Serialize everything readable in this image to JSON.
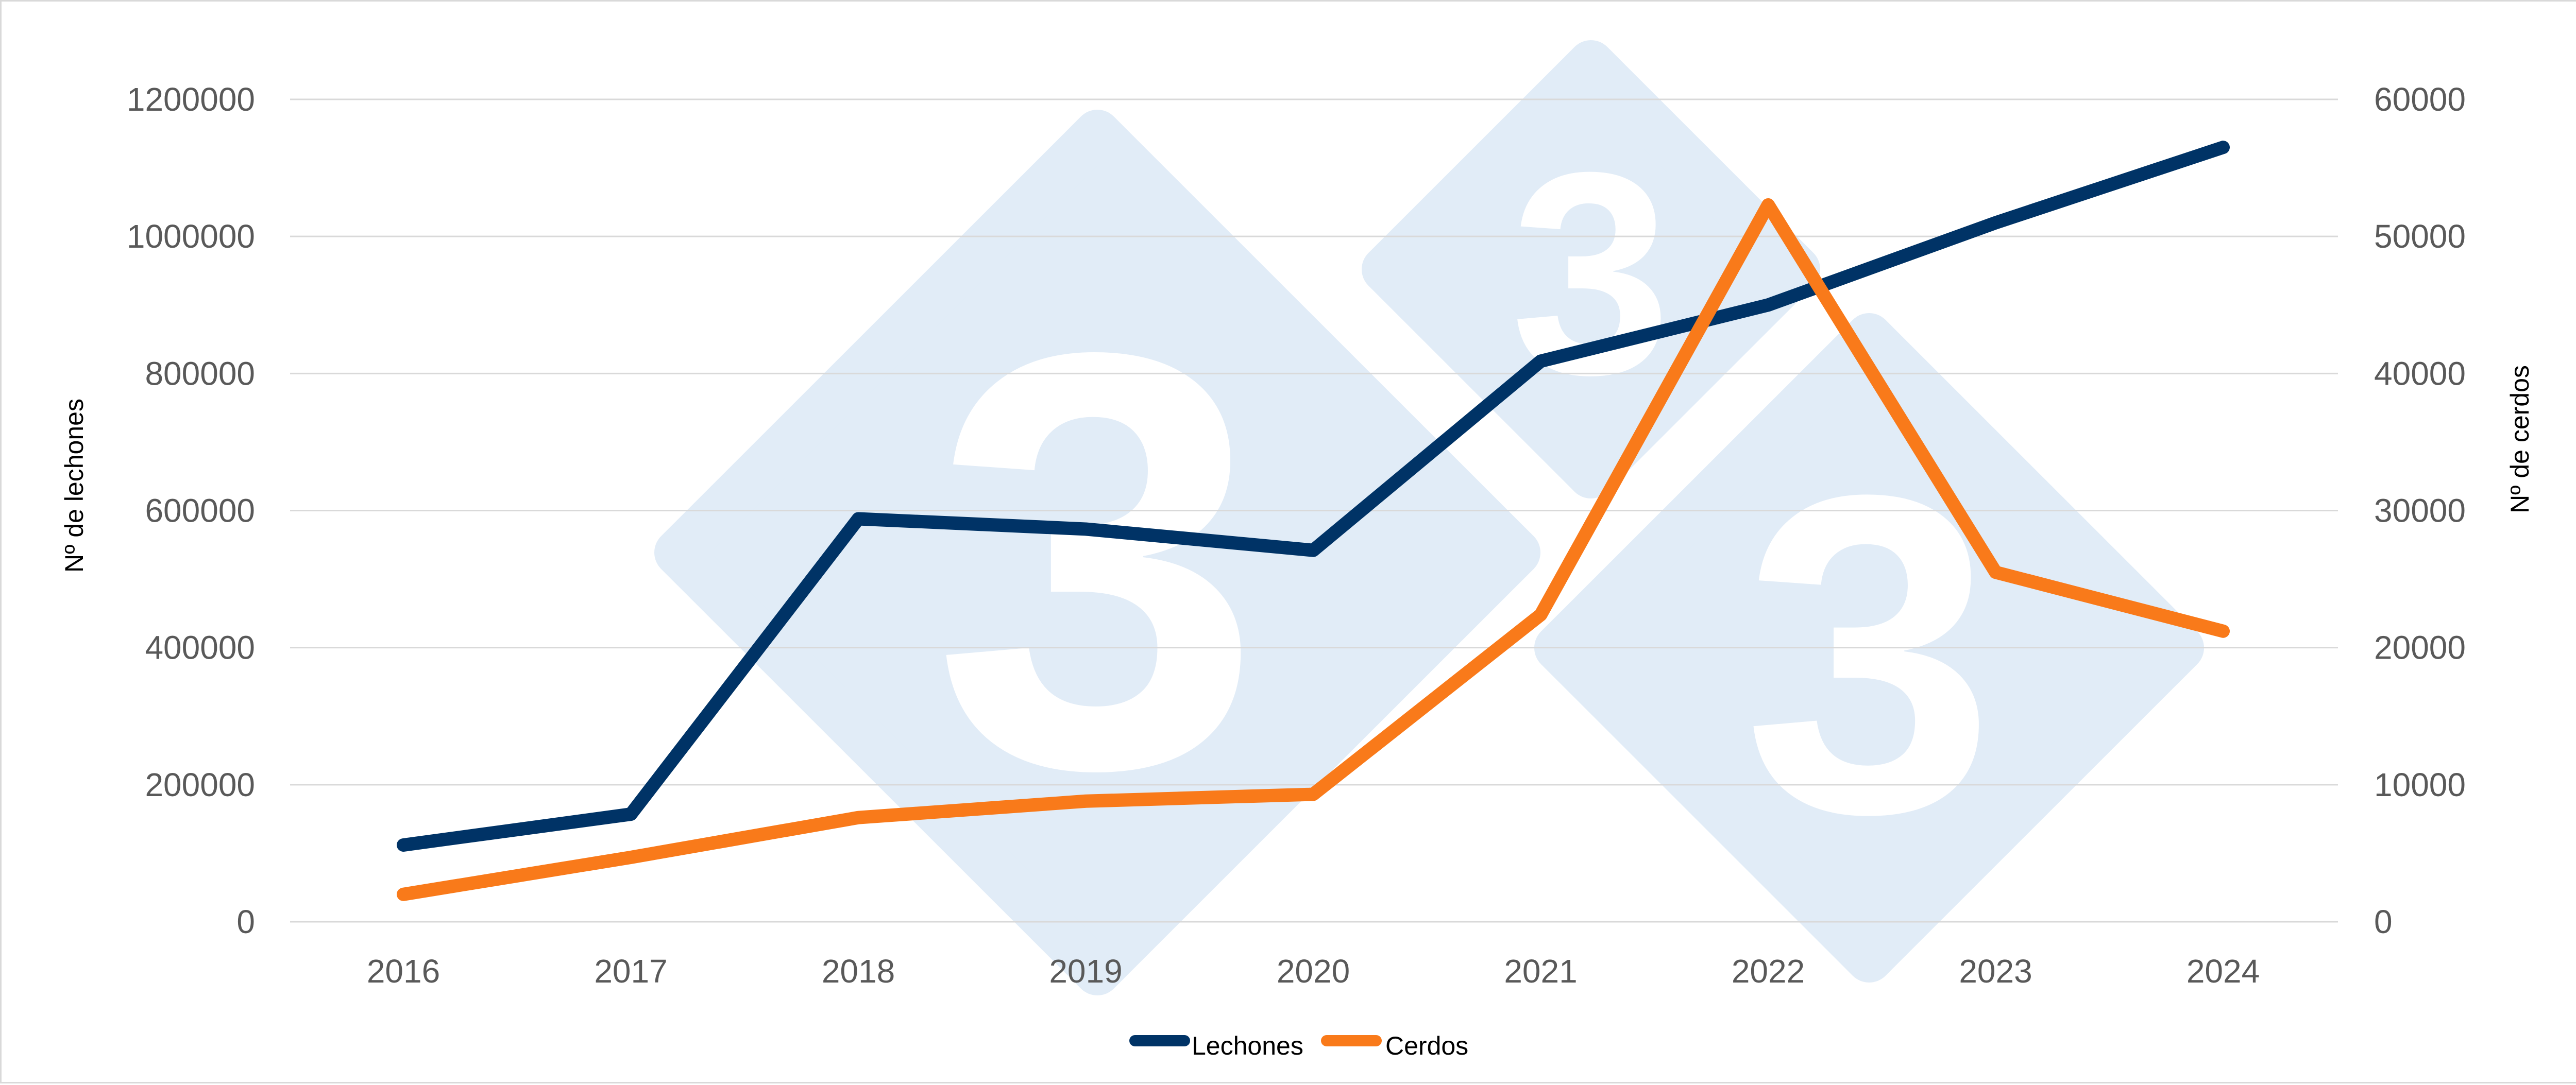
{
  "chart_data": {
    "type": "line",
    "x": [
      "2016",
      "2017",
      "2018",
      "2019",
      "2020",
      "2021",
      "2022",
      "2023",
      "2024"
    ],
    "series": [
      {
        "name": "Lechones",
        "axis": "left",
        "color": "#003366",
        "values": [
          112000,
          157000,
          588000,
          573000,
          542000,
          818000,
          900000,
          1020000,
          1130000
        ]
      },
      {
        "name": "Cerdos",
        "axis": "right",
        "color": "#f97a1a",
        "values": [
          2000,
          4700,
          7600,
          8800,
          9300,
          22400,
          52300,
          25500,
          21200
        ]
      }
    ],
    "ylabel": "Nº de lechones",
    "y2label": "Nº de cerdos",
    "ylim": [
      0,
      1200000
    ],
    "y2lim": [
      0,
      60000
    ],
    "yticks": [
      "0",
      "200000",
      "400000",
      "600000",
      "800000",
      "1000000",
      "1200000"
    ],
    "y2ticks": [
      "0",
      "10000",
      "20000",
      "30000",
      "40000",
      "50000",
      "60000"
    ],
    "grid": true,
    "legend_position": "bottom-center"
  },
  "watermark": {
    "glyph": "3",
    "color": "#e1ecf7"
  }
}
